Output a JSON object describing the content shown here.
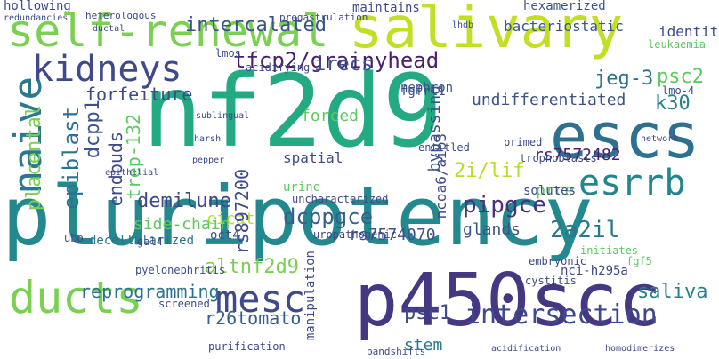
{
  "words": [
    "pluripotency",
    "nf2d9",
    "p450scc",
    "escs",
    "salivary",
    "self-renewal",
    "kidneys",
    "naive",
    "ducts",
    "mesc",
    "esrrb",
    "intersection",
    "psc2",
    "intercalated",
    "tfcp2/grainyhead",
    "irecs",
    "jeg-3",
    "k30",
    "forfeiture",
    "placental",
    "epiblast",
    "dcpp1",
    "endbuds",
    "demilune",
    "dcppgce",
    "pipgce",
    "2a2il",
    "rs7572482",
    "rs7574070",
    "altnf2d9",
    "reprogramming",
    "r26tomato",
    "psc1",
    "stem",
    "saliva",
    "prce",
    "2i/lif",
    "glands",
    "undifferentiated",
    "hexamerized",
    "bacteriostatic",
    "identity",
    "maintains",
    "nephron",
    "fgfrl1",
    "acidifying",
    "lmos",
    "decellularized",
    "pyelonephritis",
    "cicat",
    "trep-132",
    "rs897200",
    "spatial",
    "urine",
    "solutes",
    "uncharacterized",
    "side-chain",
    "forced",
    "bypassing",
    "ncoa6/aib3",
    "manipulation",
    "uropathogenic",
    "nci-h295a",
    "cystitis",
    "embryonic",
    "initiates",
    "fgf5",
    "oct4",
    "gal4",
    "ubp",
    "screened",
    "entitled",
    "trophoblasts",
    "primed",
    "leukaemia",
    "lmo-4",
    "hollowing",
    "heterologous",
    "pregastrulation",
    "redundancies",
    "ductal",
    "sublingual",
    "lhdb",
    "harsh",
    "pepper",
    "epithelial",
    "network",
    "purification",
    "bandshifts",
    "acidification",
    "homodimerizes"
  ]
}
